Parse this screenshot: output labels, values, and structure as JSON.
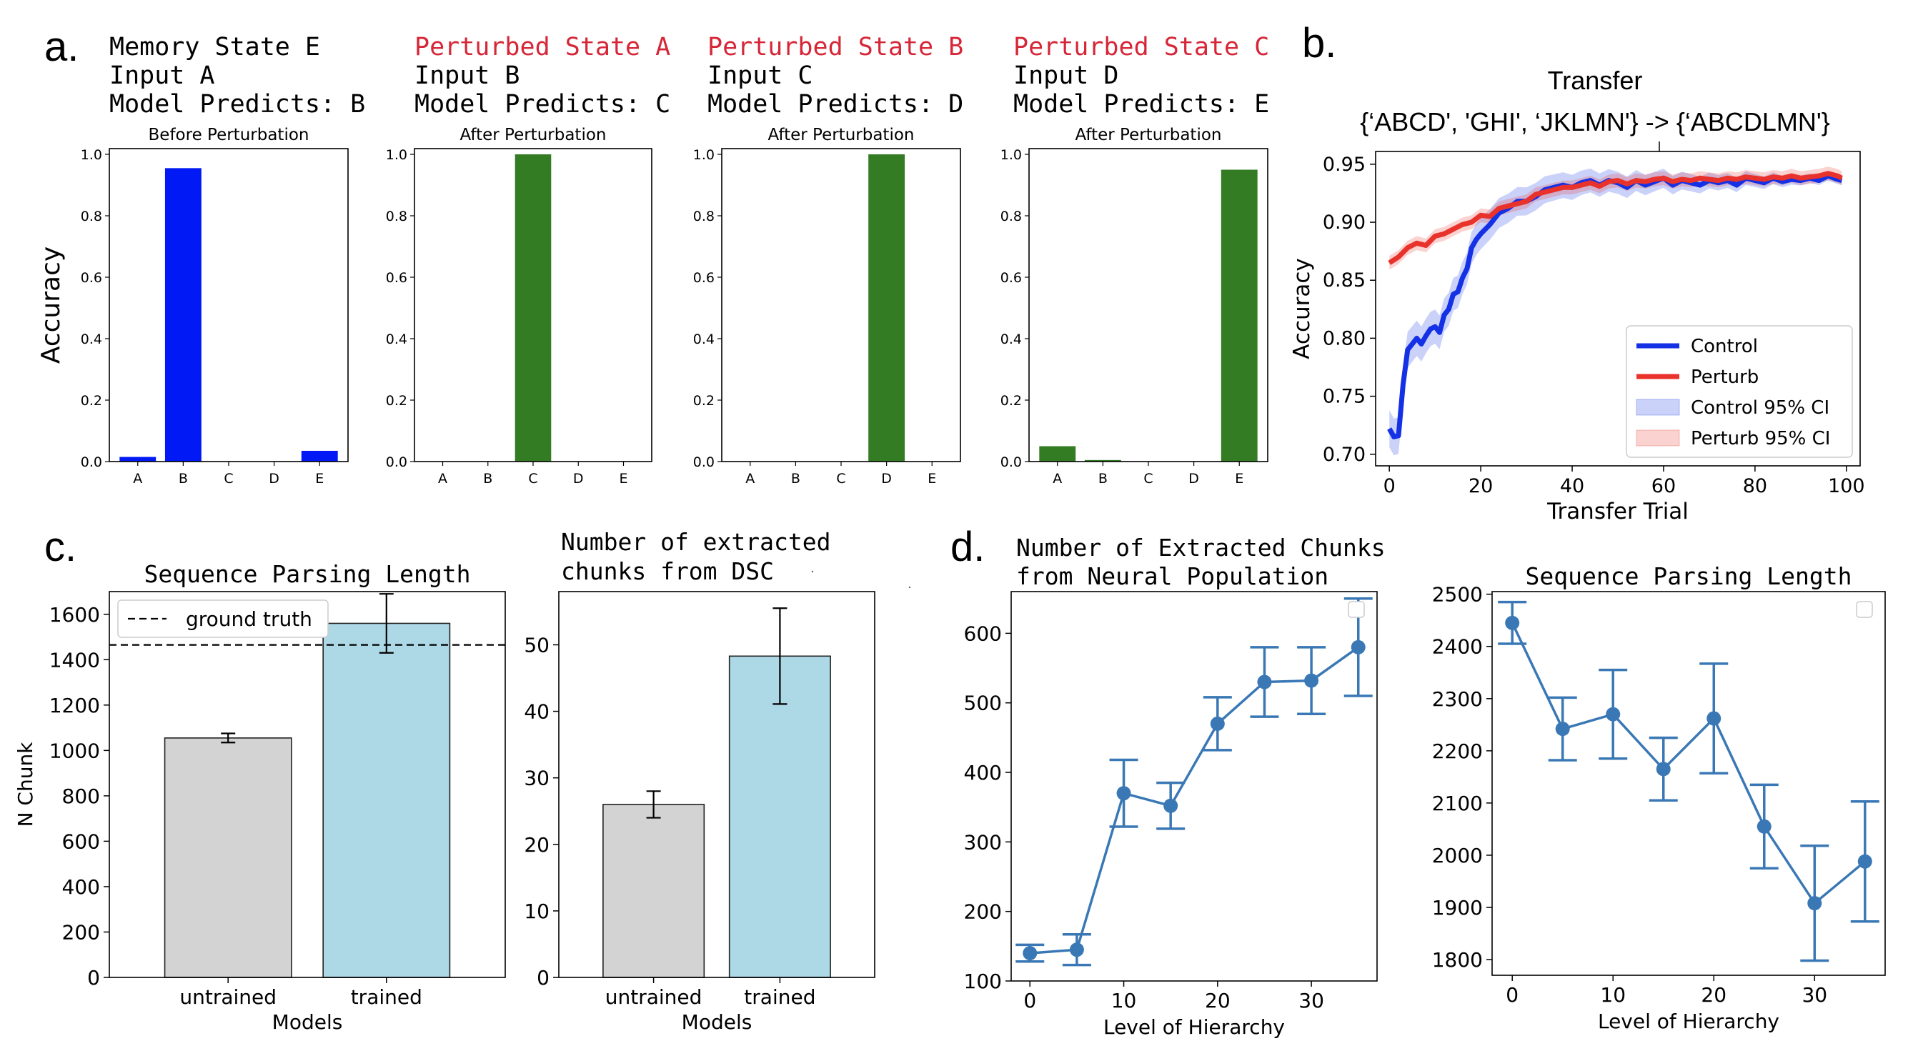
{
  "panel_labels": {
    "a": "a.",
    "b": "b.",
    "c": "c.",
    "d": "d."
  },
  "colors": {
    "blue_bar": "#0019f5",
    "green_bar": "#347c24",
    "red_text": "#d62738",
    "control": "#1431e6",
    "perturb": "#e8322b",
    "untrained": "#d3d3d3",
    "trained": "#add8e6",
    "line_d": "#3a78b5"
  },
  "chart_data": [
    {
      "id": "a1",
      "type": "bar",
      "header": {
        "line1": "Memory State E",
        "line2": "Input A",
        "line3": "Model Predicts: B",
        "line1_red": false
      },
      "title": "Before Perturbation",
      "ylabel": "Accuracy",
      "categories": [
        "A",
        "B",
        "C",
        "D",
        "E"
      ],
      "values": [
        0.015,
        0.955,
        0.0,
        0.0,
        0.035
      ],
      "ylim": [
        0,
        1.0
      ],
      "yticks": [
        "0.0",
        "0.2",
        "0.4",
        "0.6",
        "0.8",
        "1.0"
      ],
      "color": "#0019f5"
    },
    {
      "id": "a2",
      "type": "bar",
      "header": {
        "line1": "Perturbed State A",
        "line2": "Input B",
        "line3": "Model Predicts: C",
        "line1_red": true
      },
      "title": "After Perturbation",
      "categories": [
        "A",
        "B",
        "C",
        "D",
        "E"
      ],
      "values": [
        0.0,
        0.0,
        1.0,
        0.0,
        0.0
      ],
      "ylim": [
        0,
        1.0
      ],
      "yticks": [
        "0.0",
        "0.2",
        "0.4",
        "0.6",
        "0.8",
        "1.0"
      ],
      "color": "#347c24"
    },
    {
      "id": "a3",
      "type": "bar",
      "header": {
        "line1": "Perturbed State B",
        "line2": "Input C",
        "line3": "Model Predicts: D",
        "line1_red": true
      },
      "title": "After Perturbation",
      "categories": [
        "A",
        "B",
        "C",
        "D",
        "E"
      ],
      "values": [
        0.0,
        0.0,
        0.0,
        1.0,
        0.0
      ],
      "ylim": [
        0,
        1.0
      ],
      "yticks": [
        "0.0",
        "0.2",
        "0.4",
        "0.6",
        "0.8",
        "1.0"
      ],
      "color": "#347c24"
    },
    {
      "id": "a4",
      "type": "bar",
      "header": {
        "line1": "Perturbed State C",
        "line2": "Input D",
        "line3": "Model Predicts: E",
        "line1_red": true
      },
      "title": "After Perturbation",
      "categories": [
        "A",
        "B",
        "C",
        "D",
        "E"
      ],
      "values": [
        0.05,
        0.005,
        0.0,
        0.0,
        0.95
      ],
      "ylim": [
        0,
        1.0
      ],
      "yticks": [
        "0.0",
        "0.2",
        "0.4",
        "0.6",
        "0.8",
        "1.0"
      ],
      "color": "#347c24"
    },
    {
      "id": "b",
      "type": "line",
      "title": "Transfer",
      "subtitle": "{‘ABCD', 'GHI', ‘JKLMN'} -> {‘ABCDLMN'}",
      "xlabel": "Transfer Trial",
      "ylabel": "Accuracy",
      "xlim": [
        -3,
        103
      ],
      "ylim": [
        0.69,
        0.961
      ],
      "xticks": [
        0,
        20,
        40,
        60,
        80,
        100
      ],
      "yticks": [
        0.7,
        0.75,
        0.8,
        0.85,
        0.9,
        0.95
      ],
      "ytick_labels": [
        "0.70",
        "0.75",
        "0.80",
        "0.85",
        "0.90",
        "0.95"
      ],
      "legend": [
        "Control",
        "Perturb",
        "Control 95% CI",
        "Perturb 95% CI"
      ],
      "legend_position": "lower-right",
      "series": [
        {
          "name": "Control",
          "x": [
            0,
            1,
            2,
            3,
            4,
            5,
            6,
            7,
            8,
            9,
            10,
            11,
            12,
            13,
            14,
            15,
            16,
            17,
            18,
            19,
            20,
            22,
            24,
            26,
            28,
            30,
            32,
            34,
            36,
            38,
            40,
            42,
            44,
            46,
            48,
            50,
            52,
            54,
            56,
            58,
            60,
            62,
            64,
            66,
            68,
            70,
            72,
            74,
            76,
            78,
            80,
            82,
            84,
            86,
            88,
            90,
            92,
            94,
            96,
            98,
            99
          ],
          "y": [
            0.722,
            0.715,
            0.716,
            0.76,
            0.79,
            0.795,
            0.8,
            0.795,
            0.802,
            0.808,
            0.81,
            0.805,
            0.82,
            0.825,
            0.838,
            0.84,
            0.852,
            0.86,
            0.878,
            0.885,
            0.89,
            0.898,
            0.908,
            0.912,
            0.918,
            0.918,
            0.922,
            0.928,
            0.93,
            0.932,
            0.93,
            0.934,
            0.936,
            0.932,
            0.936,
            0.934,
            0.93,
            0.936,
            0.932,
            0.935,
            0.938,
            0.932,
            0.936,
            0.934,
            0.932,
            0.936,
            0.934,
            0.936,
            0.932,
            0.938,
            0.936,
            0.934,
            0.938,
            0.935,
            0.937,
            0.936,
            0.938,
            0.936,
            0.94,
            0.937,
            0.936
          ]
        },
        {
          "name": "Perturb",
          "x": [
            0,
            2,
            4,
            6,
            8,
            10,
            12,
            14,
            16,
            18,
            20,
            22,
            24,
            26,
            28,
            30,
            32,
            34,
            36,
            38,
            40,
            42,
            44,
            46,
            48,
            50,
            52,
            54,
            56,
            58,
            60,
            62,
            64,
            66,
            68,
            70,
            72,
            74,
            76,
            78,
            80,
            82,
            84,
            86,
            88,
            90,
            92,
            94,
            96,
            98,
            99
          ],
          "y": [
            0.865,
            0.87,
            0.878,
            0.882,
            0.88,
            0.888,
            0.89,
            0.894,
            0.898,
            0.9,
            0.906,
            0.905,
            0.912,
            0.914,
            0.916,
            0.918,
            0.924,
            0.926,
            0.928,
            0.93,
            0.93,
            0.932,
            0.934,
            0.931,
            0.935,
            0.936,
            0.933,
            0.936,
            0.935,
            0.937,
            0.938,
            0.935,
            0.937,
            0.936,
            0.938,
            0.937,
            0.936,
            0.938,
            0.937,
            0.939,
            0.938,
            0.937,
            0.939,
            0.938,
            0.94,
            0.938,
            0.939,
            0.94,
            0.942,
            0.94,
            0.938
          ]
        }
      ]
    },
    {
      "id": "c1",
      "type": "bar",
      "title": "Sequence Parsing Length",
      "xlabel": "Models",
      "ylabel": "N Chunk",
      "categories": [
        "untrained",
        "trained"
      ],
      "values": [
        1055,
        1560
      ],
      "errors": [
        20,
        130
      ],
      "ylim": [
        0,
        1700
      ],
      "yticks": [
        0,
        200,
        400,
        600,
        800,
        1000,
        1200,
        1400,
        1600
      ],
      "ground_truth": 1465,
      "legend": "ground truth",
      "legend_position": "top-left",
      "colors": [
        "#d3d3d3",
        "#add8e6"
      ]
    },
    {
      "id": "c2",
      "type": "bar",
      "title_line1": "Number of extracted",
      "title_line2": "chunks from DSC",
      "xlabel": "Models",
      "categories": [
        "untrained",
        "trained"
      ],
      "values": [
        26,
        48.3
      ],
      "errors": [
        2,
        7.2
      ],
      "ylim": [
        0,
        58
      ],
      "yticks": [
        0,
        10,
        20,
        30,
        40,
        50
      ],
      "colors": [
        "#d3d3d3",
        "#add8e6"
      ]
    },
    {
      "id": "d1",
      "type": "line",
      "title_line1": "Number of Extracted Chunks",
      "title_line2": "from Neural Population",
      "xlabel": "Level of Hierarchy",
      "x": [
        0,
        5,
        10,
        15,
        20,
        25,
        30,
        35
      ],
      "y": [
        140,
        145,
        370,
        352,
        470,
        530,
        532,
        580
      ],
      "errors": [
        12,
        22,
        48,
        33,
        38,
        50,
        48,
        70
      ],
      "xlim": [
        -2,
        37
      ],
      "ylim": [
        100,
        660
      ],
      "xticks": [
        0,
        10,
        20,
        30
      ],
      "yticks": [
        100,
        200,
        300,
        400,
        500,
        600
      ]
    },
    {
      "id": "d2",
      "type": "line",
      "title": "Sequence Parsing Length",
      "xlabel": "Level of Hierarchy",
      "x": [
        0,
        5,
        10,
        15,
        20,
        25,
        30,
        35
      ],
      "y": [
        2445,
        2242,
        2270,
        2165,
        2262,
        2055,
        1908,
        1988
      ],
      "errors": [
        40,
        60,
        85,
        60,
        105,
        80,
        110,
        115
      ],
      "xlim": [
        -2,
        37
      ],
      "ylim": [
        1770,
        2505
      ],
      "xticks": [
        0,
        10,
        20,
        30
      ],
      "yticks": [
        1800,
        1900,
        2000,
        2100,
        2200,
        2300,
        2400,
        2500
      ]
    }
  ]
}
